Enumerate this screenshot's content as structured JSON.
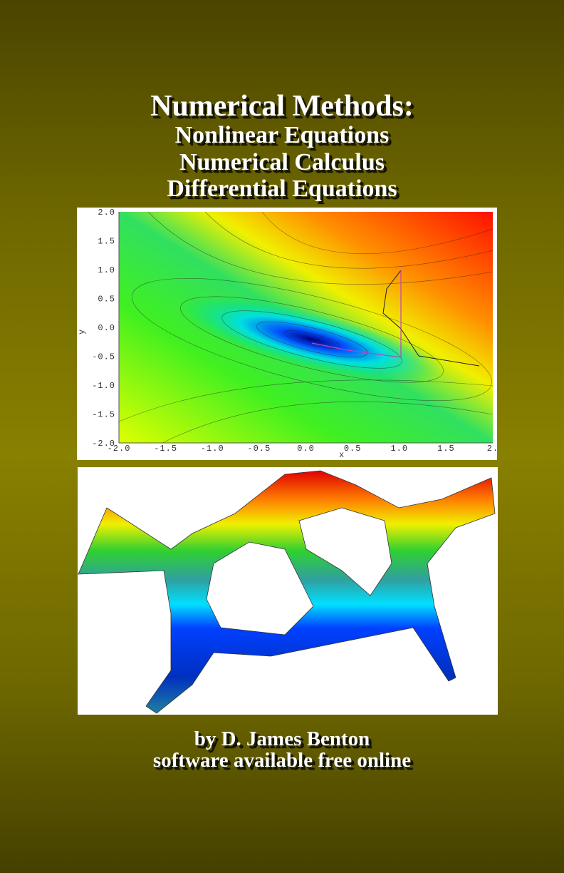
{
  "cover": {
    "title": "Numerical Methods:",
    "subtitles": [
      "Nonlinear Equations",
      "Numerical Calculus",
      "Differential Equations"
    ],
    "plot": {
      "yticks": [
        "2.0",
        "1.5",
        "1.0",
        "0.5",
        "0.0",
        "-0.5",
        "-1.0",
        "-1.5",
        "-2.0"
      ],
      "xticks": [
        "-2.0",
        "-1.5",
        "-1.0",
        "-0.5",
        "0.0",
        "0.5",
        "1.0",
        "1.5",
        "2."
      ],
      "xlabel": "x",
      "ylabel": "y"
    },
    "author": "by D. James Benton",
    "note": "software available free online"
  }
}
